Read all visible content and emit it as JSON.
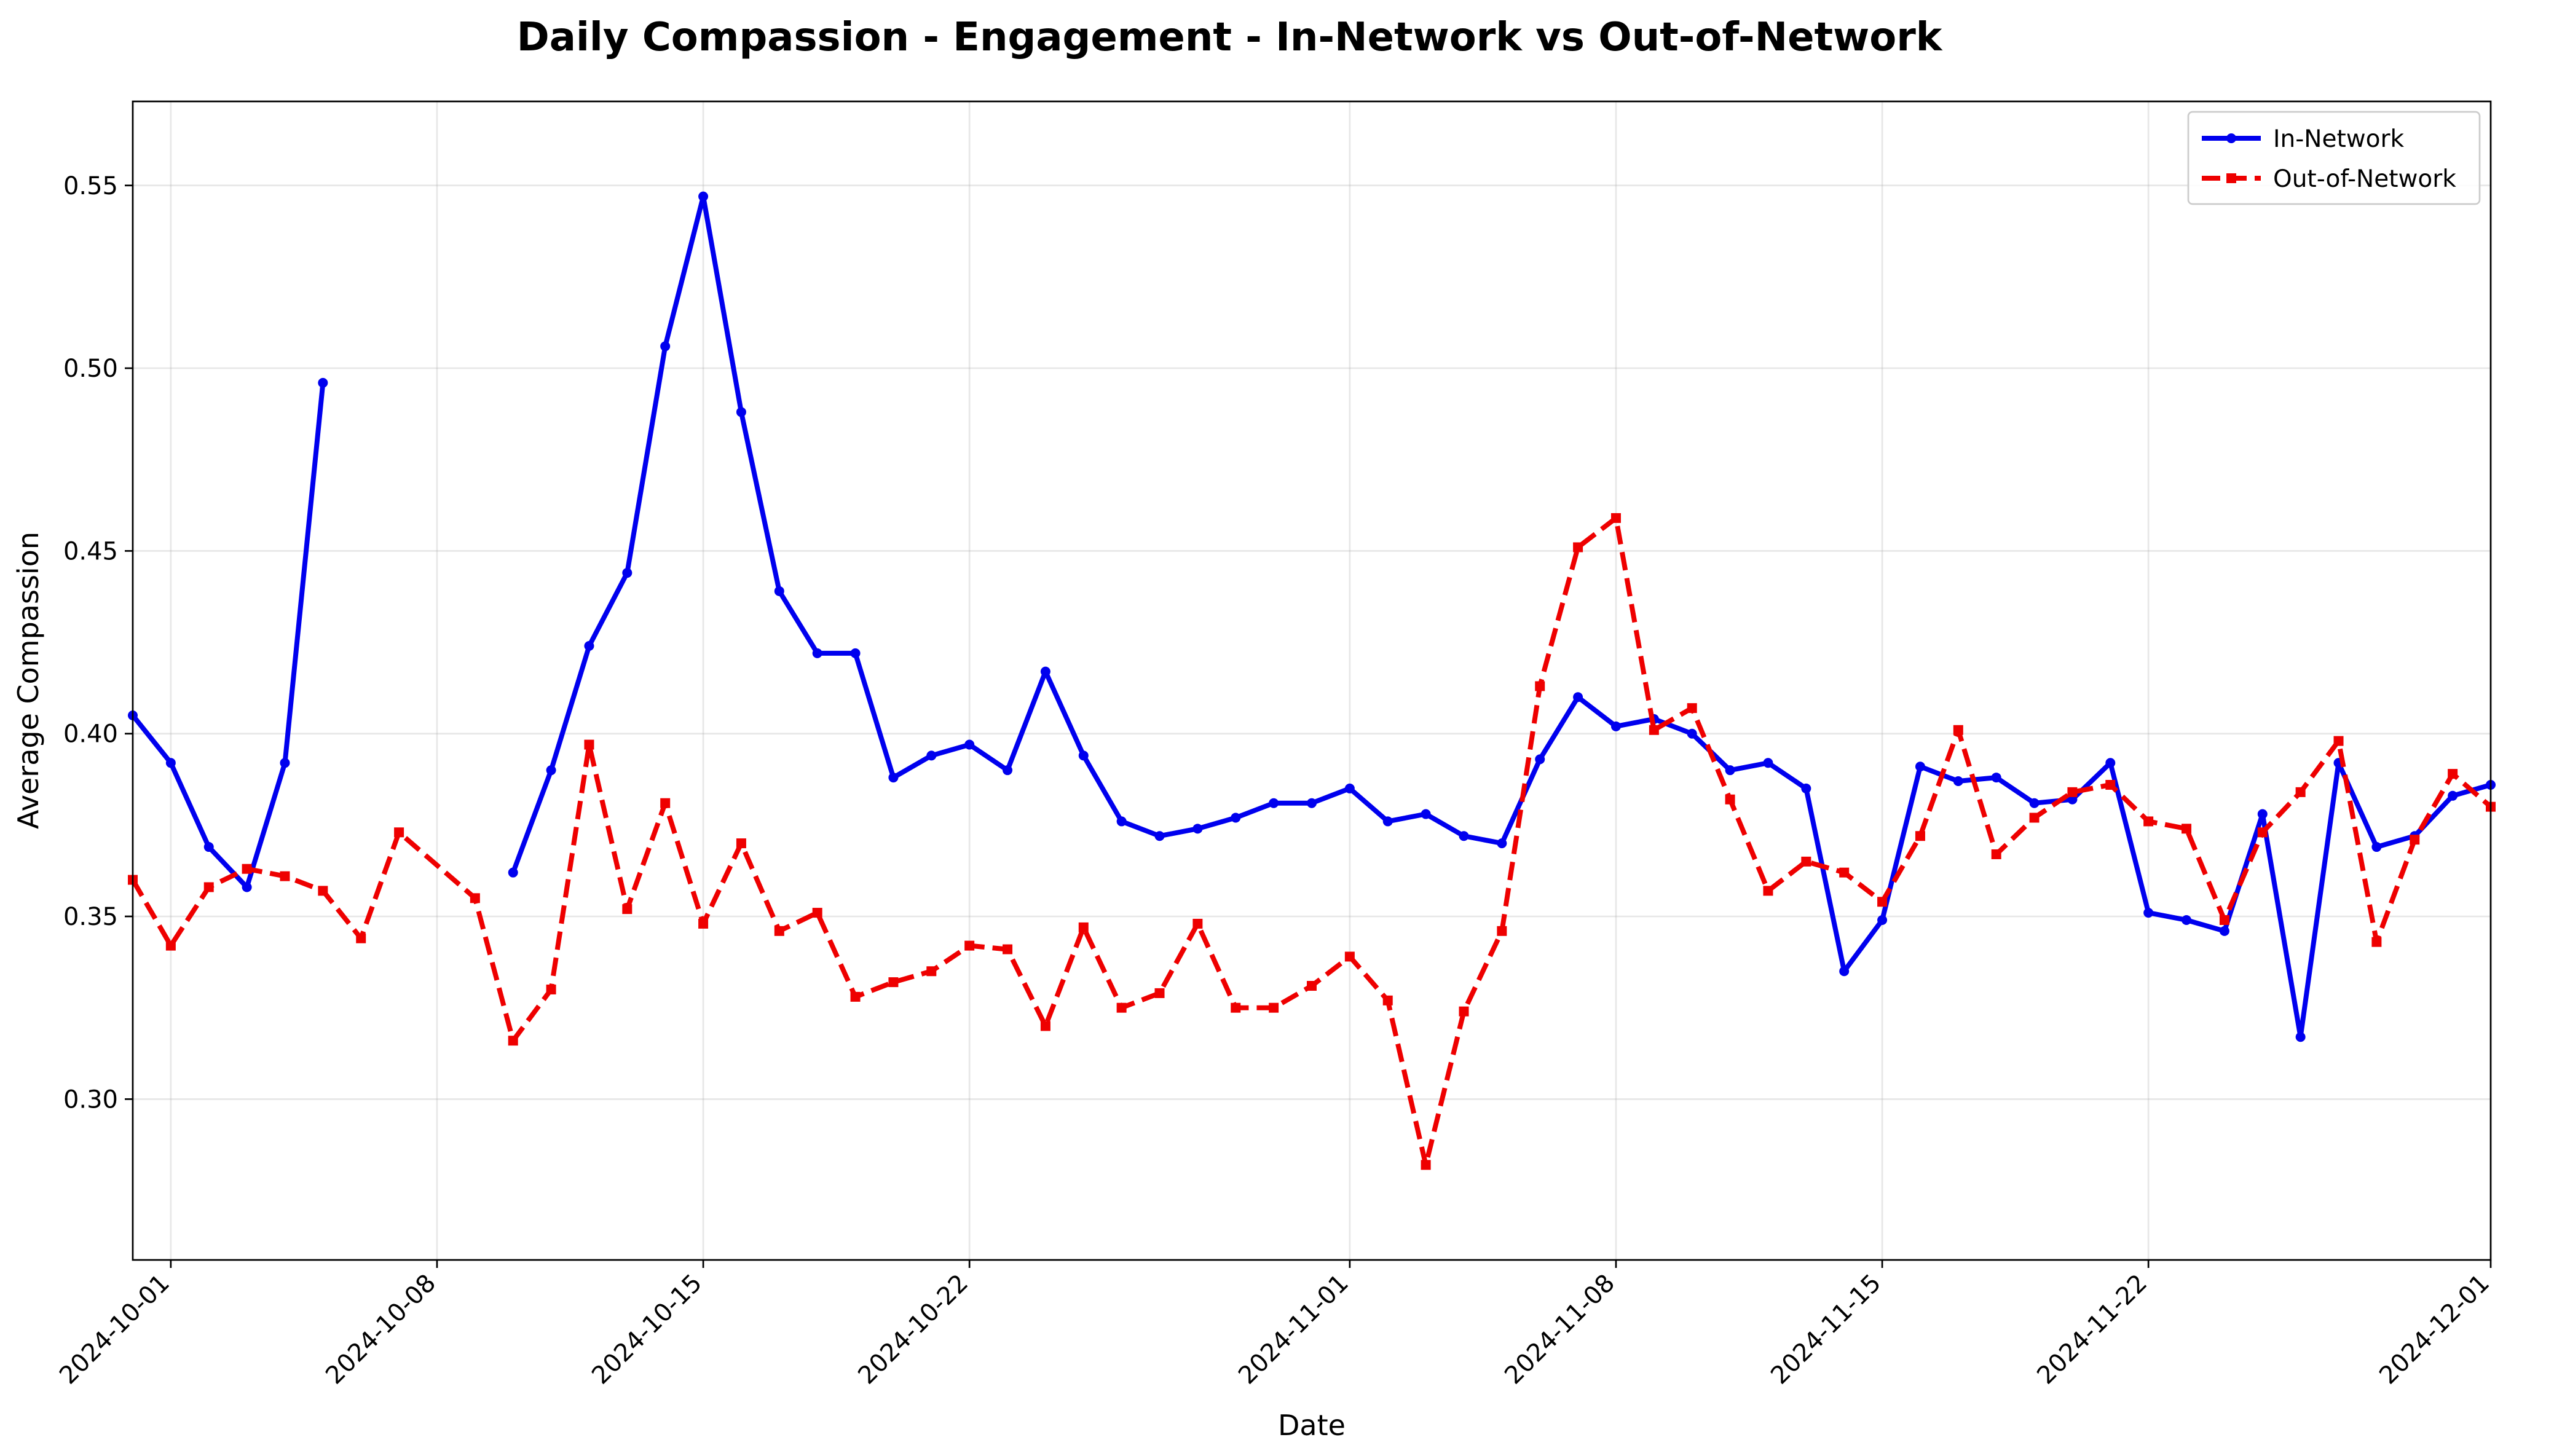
{
  "chart_data": {
    "type": "line",
    "title": "Daily Compassion - Engagement - In-Network vs Out-of-Network",
    "xlabel": "Date",
    "ylabel": "Average Compassion",
    "xlim": [
      "2024-09-30",
      "2024-12-01"
    ],
    "ylim": [
      0.256,
      0.573
    ],
    "x_ticks": [
      "2024-10-01",
      "2024-10-08",
      "2024-10-15",
      "2024-10-22",
      "2024-11-01",
      "2024-11-08",
      "2024-11-15",
      "2024-11-22",
      "2024-12-01"
    ],
    "y_ticks": [
      0.3,
      0.35,
      0.4,
      0.45,
      0.5,
      0.55
    ],
    "y_tick_labels": [
      "0.30",
      "0.35",
      "0.40",
      "0.45",
      "0.50",
      "0.55"
    ],
    "grid": true,
    "legend_position": "top-right",
    "series": [
      {
        "name": "In-Network",
        "color": "#0000ee",
        "style": "solid",
        "marker": "circle",
        "points": [
          [
            "2024-09-30",
            0.405
          ],
          [
            "2024-10-01",
            0.392
          ],
          [
            "2024-10-02",
            0.369
          ],
          [
            "2024-10-03",
            0.358
          ],
          [
            "2024-10-04",
            0.392
          ],
          [
            "2024-10-05",
            0.496
          ],
          [
            "2024-10-06",
            null
          ],
          [
            "2024-10-10",
            0.362
          ],
          [
            "2024-10-11",
            0.39
          ],
          [
            "2024-10-12",
            0.424
          ],
          [
            "2024-10-13",
            0.444
          ],
          [
            "2024-10-14",
            0.506
          ],
          [
            "2024-10-15",
            0.547
          ],
          [
            "2024-10-16",
            0.488
          ],
          [
            "2024-10-17",
            0.439
          ],
          [
            "2024-10-18",
            0.422
          ],
          [
            "2024-10-19",
            0.422
          ],
          [
            "2024-10-20",
            0.388
          ],
          [
            "2024-10-21",
            0.394
          ],
          [
            "2024-10-22",
            0.397
          ],
          [
            "2024-10-23",
            0.39
          ],
          [
            "2024-10-24",
            0.417
          ],
          [
            "2024-10-25",
            0.394
          ],
          [
            "2024-10-26",
            0.376
          ],
          [
            "2024-10-27",
            0.372
          ],
          [
            "2024-10-28",
            0.374
          ],
          [
            "2024-10-29",
            0.377
          ],
          [
            "2024-10-30",
            0.381
          ],
          [
            "2024-10-31",
            0.381
          ],
          [
            "2024-11-01",
            0.385
          ],
          [
            "2024-11-02",
            0.376
          ],
          [
            "2024-11-03",
            0.378
          ],
          [
            "2024-11-04",
            0.372
          ],
          [
            "2024-11-05",
            0.37
          ],
          [
            "2024-11-06",
            0.393
          ],
          [
            "2024-11-07",
            0.41
          ],
          [
            "2024-11-08",
            0.402
          ],
          [
            "2024-11-09",
            0.404
          ],
          [
            "2024-11-10",
            0.4
          ],
          [
            "2024-11-11",
            0.39
          ],
          [
            "2024-11-12",
            0.392
          ],
          [
            "2024-11-13",
            0.385
          ],
          [
            "2024-11-14",
            0.335
          ],
          [
            "2024-11-15",
            0.349
          ],
          [
            "2024-11-16",
            0.391
          ],
          [
            "2024-11-17",
            0.387
          ],
          [
            "2024-11-18",
            0.388
          ],
          [
            "2024-11-19",
            0.381
          ],
          [
            "2024-11-20",
            0.382
          ],
          [
            "2024-11-21",
            0.392
          ],
          [
            "2024-11-22",
            0.351
          ],
          [
            "2024-11-23",
            0.349
          ],
          [
            "2024-11-24",
            0.346
          ],
          [
            "2024-11-25",
            0.378
          ],
          [
            "2024-11-26",
            0.317
          ],
          [
            "2024-11-27",
            0.392
          ],
          [
            "2024-11-28",
            0.369
          ],
          [
            "2024-11-29",
            0.372
          ],
          [
            "2024-11-30",
            0.383
          ],
          [
            "2024-12-01",
            0.386
          ]
        ]
      },
      {
        "name": "Out-of-Network",
        "color": "#ee0000",
        "style": "dashed",
        "marker": "square",
        "points": [
          [
            "2024-09-30",
            0.36
          ],
          [
            "2024-10-01",
            0.342
          ],
          [
            "2024-10-02",
            0.358
          ],
          [
            "2024-10-03",
            0.363
          ],
          [
            "2024-10-04",
            0.361
          ],
          [
            "2024-10-05",
            0.357
          ],
          [
            "2024-10-06",
            0.344
          ],
          [
            "2024-10-07",
            0.373
          ],
          [
            "2024-10-09",
            0.355
          ],
          [
            "2024-10-10",
            0.316
          ],
          [
            "2024-10-11",
            0.33
          ],
          [
            "2024-10-12",
            0.397
          ],
          [
            "2024-10-13",
            0.352
          ],
          [
            "2024-10-14",
            0.381
          ],
          [
            "2024-10-15",
            0.348
          ],
          [
            "2024-10-16",
            0.37
          ],
          [
            "2024-10-17",
            0.346
          ],
          [
            "2024-10-18",
            0.351
          ],
          [
            "2024-10-19",
            0.328
          ],
          [
            "2024-10-20",
            0.332
          ],
          [
            "2024-10-21",
            0.335
          ],
          [
            "2024-10-22",
            0.342
          ],
          [
            "2024-10-23",
            0.341
          ],
          [
            "2024-10-24",
            0.32
          ],
          [
            "2024-10-25",
            0.347
          ],
          [
            "2024-10-26",
            0.325
          ],
          [
            "2024-10-27",
            0.329
          ],
          [
            "2024-10-28",
            0.348
          ],
          [
            "2024-10-29",
            0.325
          ],
          [
            "2024-10-30",
            0.325
          ],
          [
            "2024-10-31",
            0.331
          ],
          [
            "2024-11-01",
            0.339
          ],
          [
            "2024-11-02",
            0.327
          ],
          [
            "2024-11-03",
            0.282
          ],
          [
            "2024-11-04",
            0.324
          ],
          [
            "2024-11-05",
            0.346
          ],
          [
            "2024-11-06",
            0.413
          ],
          [
            "2024-11-07",
            0.451
          ],
          [
            "2024-11-08",
            0.459
          ],
          [
            "2024-11-09",
            0.401
          ],
          [
            "2024-11-10",
            0.407
          ],
          [
            "2024-11-11",
            0.382
          ],
          [
            "2024-11-12",
            0.357
          ],
          [
            "2024-11-13",
            0.365
          ],
          [
            "2024-11-14",
            0.362
          ],
          [
            "2024-11-15",
            0.354
          ],
          [
            "2024-11-16",
            0.372
          ],
          [
            "2024-11-17",
            0.401
          ],
          [
            "2024-11-18",
            0.367
          ],
          [
            "2024-11-19",
            0.377
          ],
          [
            "2024-11-20",
            0.384
          ],
          [
            "2024-11-21",
            0.386
          ],
          [
            "2024-11-22",
            0.376
          ],
          [
            "2024-11-23",
            0.374
          ],
          [
            "2024-11-24",
            0.349
          ],
          [
            "2024-11-25",
            0.373
          ],
          [
            "2024-11-26",
            0.384
          ],
          [
            "2024-11-27",
            0.398
          ],
          [
            "2024-11-28",
            0.343
          ],
          [
            "2024-11-29",
            0.371
          ],
          [
            "2024-11-30",
            0.389
          ],
          [
            "2024-12-01",
            0.38
          ]
        ]
      }
    ]
  }
}
